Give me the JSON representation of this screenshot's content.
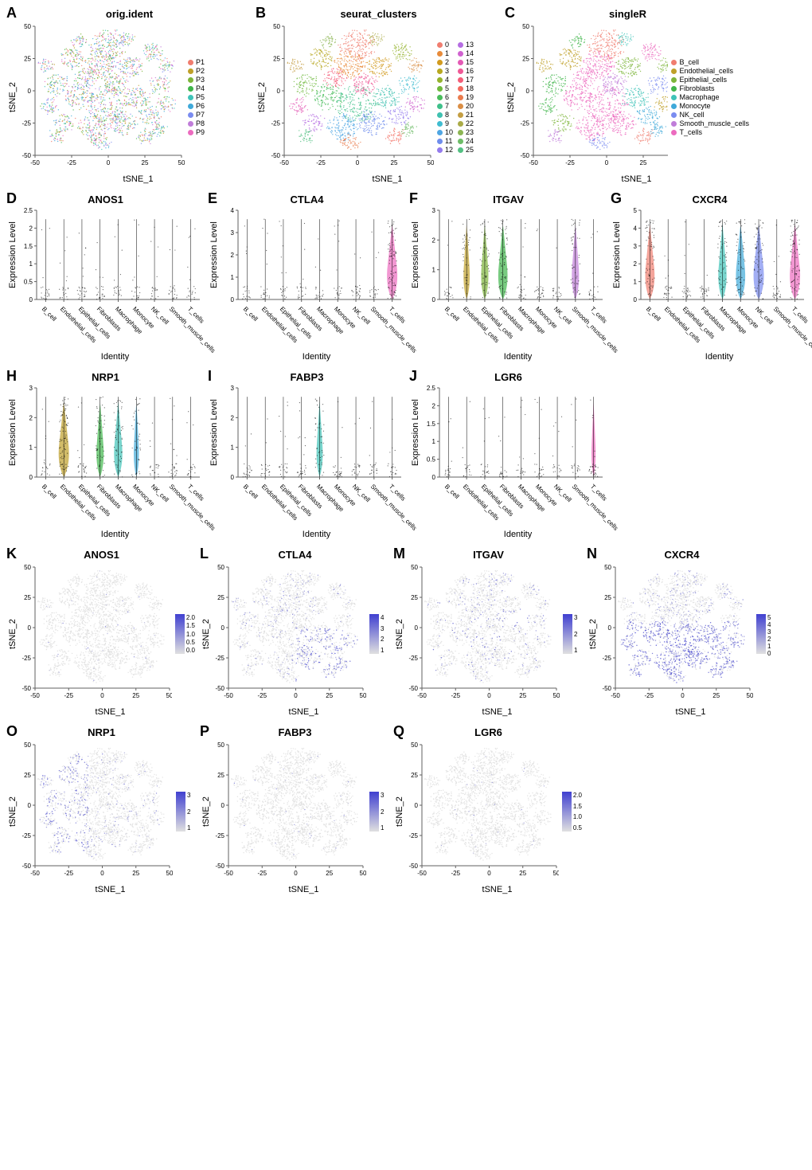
{
  "cell_types": [
    "B_cell",
    "Endothelial_cells",
    "Epithelial_cells",
    "Fibroblasts",
    "Macrophage",
    "Monocyte",
    "NK_cell",
    "Smooth_muscle_cells",
    "T_cells"
  ],
  "cell_type_colors": [
    "#f07d6f",
    "#bfa029",
    "#7db53a",
    "#3fb54a",
    "#3fc3b8",
    "#3fa9d9",
    "#7a8cf0",
    "#c07dd9",
    "#ec6bbf"
  ],
  "patients": [
    "P1",
    "P2",
    "P3",
    "P4",
    "P5",
    "P6",
    "P7",
    "P8",
    "P9"
  ],
  "patient_colors": [
    "#f07d6f",
    "#bfa029",
    "#7db53a",
    "#3fb54a",
    "#3fc3b8",
    "#3fa9d9",
    "#7a8cf0",
    "#c07dd9",
    "#ec6bbf"
  ],
  "clusters": [
    "0",
    "1",
    "2",
    "3",
    "4",
    "5",
    "6",
    "7",
    "8",
    "9",
    "10",
    "11",
    "12",
    "13",
    "14",
    "15",
    "16",
    "17",
    "18",
    "19",
    "20",
    "21",
    "22",
    "23",
    "24",
    "25"
  ],
  "cluster_colors": [
    "#f07d6f",
    "#e88b3a",
    "#d29b1f",
    "#b8a820",
    "#95b32d",
    "#6fb93d",
    "#4abd5c",
    "#3fc08a",
    "#3fc1b0",
    "#3fbcd0",
    "#4fa6e3",
    "#6f8dec",
    "#947bed",
    "#b56de2",
    "#d062cf",
    "#e45ab5",
    "#ef5896",
    "#f45c78",
    "#f36a5e",
    "#ea7c4e",
    "#da8e45",
    "#c49e42",
    "#aaab47",
    "#8cb553",
    "#6dbc67",
    "#53c082"
  ],
  "tsne": {
    "xlim": [
      -50,
      50
    ],
    "ylim": [
      -50,
      50
    ],
    "xticks": [
      -50,
      -25,
      0,
      25,
      50
    ],
    "yticks": [
      -50,
      -25,
      0,
      25,
      50
    ],
    "xlabel": "tSNE_1",
    "ylabel": "tSNE_2"
  },
  "panels_tsne_top": [
    {
      "letter": "A",
      "title": "orig.ident",
      "legend": "patients"
    },
    {
      "letter": "B",
      "title": "seurat_clusters",
      "legend": "clusters"
    },
    {
      "letter": "C",
      "title": "singleR",
      "legend": "cell_types"
    }
  ],
  "violin_genes": [
    {
      "letter": "D",
      "gene": "ANOS1",
      "ymax": 2.5,
      "yticks": [
        0.0,
        0.5,
        1.0,
        1.5,
        2.0,
        2.5
      ],
      "shapes": [
        0.05,
        0.05,
        0.1,
        0.08,
        0.06,
        0.05,
        0.04,
        0.05,
        0.04
      ]
    },
    {
      "letter": "E",
      "gene": "CTLA4",
      "ymax": 4,
      "yticks": [
        0,
        1,
        2,
        3,
        4
      ],
      "shapes": [
        0.05,
        0.05,
        0.05,
        0.05,
        0.05,
        0.06,
        0.1,
        0.05,
        0.6
      ]
    },
    {
      "letter": "F",
      "gene": "ITGAV",
      "ymax": 3,
      "yticks": [
        0,
        1,
        2,
        3
      ],
      "shapes": [
        0.05,
        0.25,
        0.3,
        0.4,
        0.1,
        0.1,
        0.05,
        0.3,
        0.05
      ]
    },
    {
      "letter": "G",
      "gene": "CXCR4",
      "ymax": 5,
      "yticks": [
        0,
        1,
        2,
        3,
        4,
        5
      ],
      "shapes": [
        0.4,
        0.1,
        0.1,
        0.1,
        0.35,
        0.4,
        0.45,
        0.1,
        0.6
      ]
    },
    {
      "letter": "H",
      "gene": "NRP1",
      "ymax": 3,
      "yticks": [
        0,
        1,
        2,
        3
      ],
      "shapes": [
        0.05,
        0.6,
        0.1,
        0.3,
        0.35,
        0.2,
        0.05,
        0.1,
        0.05
      ]
    },
    {
      "letter": "I",
      "gene": "FABP3",
      "ymax": 3,
      "yticks": [
        0,
        1,
        2,
        3
      ],
      "shapes": [
        0.05,
        0.05,
        0.08,
        0.1,
        0.25,
        0.1,
        0.05,
        0.05,
        0.05
      ]
    },
    {
      "letter": "J",
      "gene": "LGR6",
      "ymax": 2.5,
      "yticks": [
        0.0,
        0.5,
        1.0,
        1.5,
        2.0,
        2.5
      ],
      "shapes": [
        0.04,
        0.04,
        0.05,
        0.04,
        0.04,
        0.05,
        0.04,
        0.05,
        0.15
      ]
    }
  ],
  "feature_plots": [
    {
      "letter": "K",
      "gene": "ANOS1",
      "max": 2.0,
      "ticks": [
        "2.0",
        "1.5",
        "1.0",
        "0.5",
        "0.0"
      ],
      "intensity": 0.05
    },
    {
      "letter": "L",
      "gene": "CTLA4",
      "max": 4,
      "ticks": [
        "4",
        "3",
        "2",
        "1"
      ],
      "intensity": 0.4,
      "region": "bottom-right"
    },
    {
      "letter": "M",
      "gene": "ITGAV",
      "max": 3,
      "ticks": [
        "3",
        "2",
        "1"
      ],
      "intensity": 0.3,
      "region": "scattered"
    },
    {
      "letter": "N",
      "gene": "CXCR4",
      "max": 5,
      "ticks": [
        "5",
        "4",
        "3",
        "2",
        "1",
        "0"
      ],
      "intensity": 0.7,
      "region": "bottom"
    },
    {
      "letter": "O",
      "gene": "NRP1",
      "max": 3,
      "ticks": [
        "3",
        "2",
        "1"
      ],
      "intensity": 0.35,
      "region": "left"
    },
    {
      "letter": "P",
      "gene": "FABP3",
      "max": 3,
      "ticks": [
        "3",
        "2",
        "1"
      ],
      "intensity": 0.08
    },
    {
      "letter": "Q",
      "gene": "LGR6",
      "max": 2.0,
      "ticks": [
        "2.0",
        "1.5",
        "1.0",
        "0.5"
      ],
      "intensity": 0.04
    }
  ],
  "colors": {
    "feature_low": "#e0e0e0",
    "feature_high": "#4040d0",
    "axis": "#606060",
    "text": "#000000"
  },
  "labels": {
    "expression": "Expression Level",
    "identity": "Identity"
  }
}
